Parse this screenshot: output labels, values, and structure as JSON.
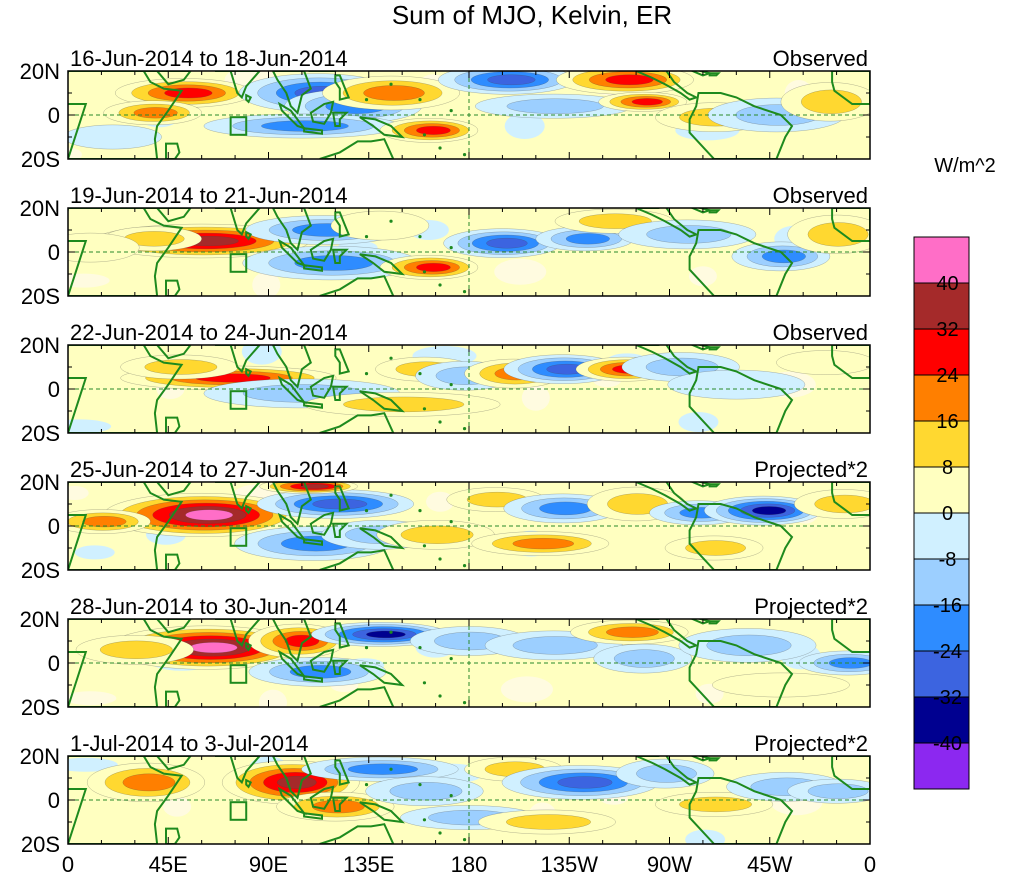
{
  "chart_data": {
    "type": "heatmap",
    "title": "Sum of MJO, Kelvin, ER",
    "units": "W/m^2",
    "x_ticks": [
      "0",
      "45E",
      "90E",
      "135E",
      "180",
      "135W",
      "90W",
      "45W",
      "0"
    ],
    "y_ticks": [
      "20N",
      "0",
      "20S"
    ],
    "xlim": [
      0,
      360
    ],
    "ylim": [
      -20,
      20
    ],
    "colorbar_labels": [
      "40",
      "32",
      "24",
      "16",
      "8",
      "0",
      "-8",
      "-16",
      "-24",
      "-32",
      "-40"
    ],
    "colorbar_colors": [
      "#ff6ec7",
      "#a52a2a",
      "#ff0000",
      "#ff7f00",
      "#ffd830",
      "#ffffc0",
      "#d0f0ff",
      "#9ccfff",
      "#2e8cff",
      "#3c64e0",
      "#000090",
      "#8c28f0"
    ],
    "panels": [
      {
        "date_label": "16-Jun-2014 to 18-Jun-2014",
        "mode_label": "Observed",
        "blobs": [
          {
            "lon": 52,
            "lat": 10,
            "rlon": 14,
            "rlat": 6,
            "v": 30
          },
          {
            "lon": 38,
            "lat": 1,
            "rlon": 10,
            "rlat": 5,
            "v": 20
          },
          {
            "lon": 112,
            "lat": 10,
            "rlon": 16,
            "rlat": 8,
            "v": -28
          },
          {
            "lon": 128,
            "lat": 4,
            "rlon": 14,
            "rlat": 7,
            "v": -24
          },
          {
            "lon": 105,
            "lat": -5,
            "rlon": 20,
            "rlat": 5,
            "v": -18
          },
          {
            "lon": 145,
            "lat": 10,
            "rlon": 14,
            "rlat": 7,
            "v": 22
          },
          {
            "lon": 162,
            "lat": -7,
            "rlon": 10,
            "rlat": 5,
            "v": 30
          },
          {
            "lon": 197,
            "lat": 16,
            "rlon": 14,
            "rlat": 6,
            "v": -32
          },
          {
            "lon": 218,
            "lat": 4,
            "rlon": 16,
            "rlat": 5,
            "v": -14
          },
          {
            "lon": 250,
            "lat": 16,
            "rlon": 14,
            "rlat": 6,
            "v": 28
          },
          {
            "lon": 258,
            "lat": 6,
            "rlon": 9,
            "rlat": 4,
            "v": 32
          },
          {
            "lon": 290,
            "lat": -1,
            "rlon": 12,
            "rlat": 6,
            "v": 12
          },
          {
            "lon": 318,
            "lat": 0,
            "rlon": 14,
            "rlat": 7,
            "v": -12
          },
          {
            "lon": 342,
            "lat": 6,
            "rlon": 10,
            "rlat": 8,
            "v": 14
          },
          {
            "lon": 20,
            "lat": -10,
            "rlon": 10,
            "rlat": 5,
            "v": -8
          }
        ]
      },
      {
        "date_label": "19-Jun-2014 to 21-Jun-2014",
        "mode_label": "Observed",
        "blobs": [
          {
            "lon": 60,
            "lat": 5,
            "rlon": 22,
            "rlat": 7,
            "v": 34
          },
          {
            "lon": 38,
            "lat": 6,
            "rlon": 10,
            "rlat": 5,
            "v": 14
          },
          {
            "lon": 115,
            "lat": 10,
            "rlon": 16,
            "rlat": 6,
            "v": -18
          },
          {
            "lon": 118,
            "lat": -5,
            "rlon": 18,
            "rlat": 7,
            "v": -22
          },
          {
            "lon": 140,
            "lat": 12,
            "rlon": 10,
            "rlat": 6,
            "v": 8
          },
          {
            "lon": 162,
            "lat": -7,
            "rlon": 10,
            "rlat": 5,
            "v": 30
          },
          {
            "lon": 195,
            "lat": 4,
            "rlon": 12,
            "rlat": 6,
            "v": -26
          },
          {
            "lon": 232,
            "lat": 6,
            "rlon": 10,
            "rlat": 5,
            "v": -18
          },
          {
            "lon": 245,
            "lat": 14,
            "rlon": 12,
            "rlat": 5,
            "v": 14
          },
          {
            "lon": 278,
            "lat": 8,
            "rlon": 14,
            "rlat": 6,
            "v": -16
          },
          {
            "lon": 320,
            "lat": -2,
            "rlon": 10,
            "rlat": 6,
            "v": -18
          },
          {
            "lon": 345,
            "lat": 8,
            "rlon": 10,
            "rlat": 8,
            "v": 10
          },
          {
            "lon": 10,
            "lat": 2,
            "rlon": 10,
            "rlat": 6,
            "v": 8
          }
        ]
      },
      {
        "date_label": "22-Jun-2014 to 24-Jun-2014",
        "mode_label": "Observed",
        "blobs": [
          {
            "lon": 72,
            "lat": 5,
            "rlon": 22,
            "rlat": 5,
            "v": 26
          },
          {
            "lon": 50,
            "lat": 10,
            "rlon": 12,
            "rlat": 5,
            "v": 14
          },
          {
            "lon": 105,
            "lat": -2,
            "rlon": 20,
            "rlat": 6,
            "v": -14
          },
          {
            "lon": 150,
            "lat": -7,
            "rlon": 20,
            "rlat": 5,
            "v": 12
          },
          {
            "lon": 160,
            "lat": 9,
            "rlon": 10,
            "rlat": 5,
            "v": 14
          },
          {
            "lon": 178,
            "lat": 6,
            "rlon": 10,
            "rlat": 6,
            "v": -12
          },
          {
            "lon": 200,
            "lat": 7,
            "rlon": 10,
            "rlat": 6,
            "v": 20
          },
          {
            "lon": 222,
            "lat": 9,
            "rlon": 12,
            "rlat": 6,
            "v": -30
          },
          {
            "lon": 250,
            "lat": 9,
            "rlon": 10,
            "rlat": 5,
            "v": 28
          },
          {
            "lon": 275,
            "lat": 10,
            "rlon": 12,
            "rlat": 6,
            "v": -14
          },
          {
            "lon": 300,
            "lat": 2,
            "rlon": 14,
            "rlat": 6,
            "v": -8
          },
          {
            "lon": 340,
            "lat": 12,
            "rlon": 10,
            "rlat": 5,
            "v": 8
          }
        ]
      },
      {
        "date_label": "25-Jun-2014 to 27-Jun-2014",
        "mode_label": "Projected*2",
        "blobs": [
          {
            "lon": 60,
            "lat": 5,
            "rlon": 20,
            "rlat": 9,
            "v": 44
          },
          {
            "lon": 15,
            "lat": 2,
            "rlon": 10,
            "rlat": 5,
            "v": 22
          },
          {
            "lon": 120,
            "lat": 10,
            "rlon": 16,
            "rlat": 6,
            "v": -32
          },
          {
            "lon": 110,
            "lat": -8,
            "rlon": 16,
            "rlat": 7,
            "v": -22
          },
          {
            "lon": 108,
            "lat": 18,
            "rlon": 10,
            "rlat": 3,
            "v": 36
          },
          {
            "lon": 140,
            "lat": -4,
            "rlon": 12,
            "rlat": 6,
            "v": -14
          },
          {
            "lon": 165,
            "lat": -4,
            "rlon": 12,
            "rlat": 6,
            "v": 14
          },
          {
            "lon": 192,
            "lat": 12,
            "rlon": 10,
            "rlat": 5,
            "v": 14
          },
          {
            "lon": 222,
            "lat": 8,
            "rlon": 12,
            "rlat": 6,
            "v": -20
          },
          {
            "lon": 212,
            "lat": -8,
            "rlon": 14,
            "rlat": 5,
            "v": 20
          },
          {
            "lon": 255,
            "lat": 10,
            "rlon": 10,
            "rlat": 7,
            "v": 16
          },
          {
            "lon": 283,
            "lat": 6,
            "rlon": 10,
            "rlat": 5,
            "v": -20
          },
          {
            "lon": 312,
            "lat": 7,
            "rlon": 12,
            "rlat": 6,
            "v": -34
          },
          {
            "lon": 290,
            "lat": -10,
            "rlon": 10,
            "rlat": 5,
            "v": 14
          },
          {
            "lon": 348,
            "lat": 10,
            "rlon": 10,
            "rlat": 6,
            "v": 10
          }
        ]
      },
      {
        "date_label": "28-Jun-2014 to 30-Jun-2014",
        "mode_label": "Projected*2",
        "blobs": [
          {
            "lon": 62,
            "lat": 7,
            "rlon": 20,
            "rlat": 9,
            "v": 44
          },
          {
            "lon": 30,
            "lat": 6,
            "rlon": 12,
            "rlat": 6,
            "v": 10
          },
          {
            "lon": 103,
            "lat": 10,
            "rlon": 10,
            "rlat": 7,
            "v": 28
          },
          {
            "lon": 140,
            "lat": 13,
            "rlon": 14,
            "rlat": 5,
            "v": -40
          },
          {
            "lon": 112,
            "lat": -4,
            "rlon": 14,
            "rlat": 6,
            "v": -18
          },
          {
            "lon": 180,
            "lat": 10,
            "rlon": 12,
            "rlat": 6,
            "v": -10
          },
          {
            "lon": 218,
            "lat": 8,
            "rlon": 14,
            "rlat": 6,
            "v": -14
          },
          {
            "lon": 252,
            "lat": 14,
            "rlon": 12,
            "rlat": 5,
            "v": 18
          },
          {
            "lon": 258,
            "lat": 2,
            "rlon": 10,
            "rlat": 6,
            "v": -14
          },
          {
            "lon": 305,
            "lat": 8,
            "rlon": 14,
            "rlat": 7,
            "v": -16
          },
          {
            "lon": 350,
            "lat": 0,
            "rlon": 10,
            "rlat": 5,
            "v": -20
          },
          {
            "lon": 320,
            "lat": -10,
            "rlon": 14,
            "rlat": 5,
            "v": 8
          }
        ]
      },
      {
        "date_label": "1-Jul-2014 to 3-Jul-2014",
        "mode_label": "Projected*2",
        "blobs": [
          {
            "lon": 35,
            "lat": 8,
            "rlon": 12,
            "rlat": 8,
            "v": 24
          },
          {
            "lon": 100,
            "lat": 8,
            "rlon": 14,
            "rlat": 9,
            "v": 34
          },
          {
            "lon": 120,
            "lat": -3,
            "rlon": 12,
            "rlat": 6,
            "v": 20
          },
          {
            "lon": 140,
            "lat": 14,
            "rlon": 16,
            "rlat": 5,
            "v": -22
          },
          {
            "lon": 160,
            "lat": 4,
            "rlon": 12,
            "rlat": 6,
            "v": -14
          },
          {
            "lon": 180,
            "lat": -8,
            "rlon": 14,
            "rlat": 5,
            "v": -10
          },
          {
            "lon": 200,
            "lat": 14,
            "rlon": 10,
            "rlat": 5,
            "v": 12
          },
          {
            "lon": 230,
            "lat": 8,
            "rlon": 16,
            "rlat": 7,
            "v": -30
          },
          {
            "lon": 215,
            "lat": -10,
            "rlon": 14,
            "rlat": 5,
            "v": 14
          },
          {
            "lon": 268,
            "lat": 12,
            "rlon": 10,
            "rlat": 6,
            "v": -16
          },
          {
            "lon": 290,
            "lat": -2,
            "rlon": 12,
            "rlat": 5,
            "v": 10
          },
          {
            "lon": 322,
            "lat": 6,
            "rlon": 12,
            "rlat": 6,
            "v": -12
          },
          {
            "lon": 345,
            "lat": 4,
            "rlon": 10,
            "rlat": 5,
            "v": -14
          }
        ]
      }
    ]
  }
}
